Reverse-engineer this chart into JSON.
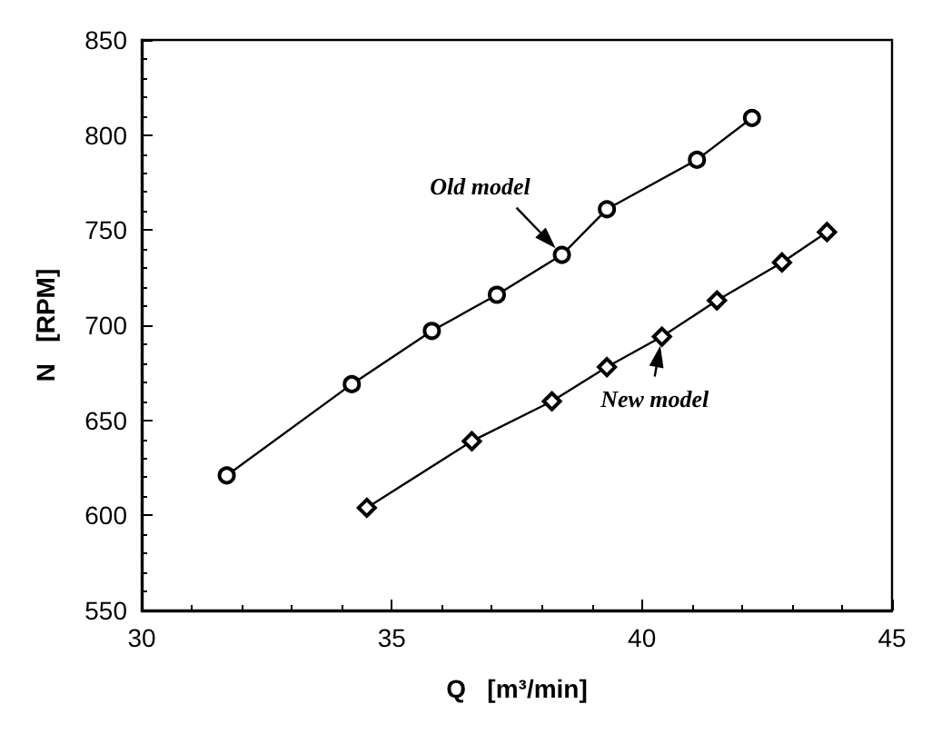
{
  "chart_data": {
    "type": "line",
    "xlabel": "Q   [m³/min]",
    "ylabel": "N   [RPM]",
    "xlim": [
      30,
      45
    ],
    "xticks": [
      30,
      35,
      40,
      45
    ],
    "ylim": [
      550,
      850
    ],
    "yticks": [
      550,
      600,
      650,
      700,
      750,
      800,
      850
    ],
    "grid": false,
    "line_style": "solid",
    "series": [
      {
        "color": "#000000",
        "marker": "circle",
        "x": [
          31.7,
          34.2,
          35.8,
          37.1,
          38.4,
          39.3,
          41.1,
          42.2
        ],
        "values": [
          621,
          669,
          697,
          716,
          737,
          761,
          787,
          809
        ]
      },
      {
        "color": "#000000",
        "marker": "diamond",
        "x": [
          34.5,
          36.6,
          38.2,
          39.3,
          40.4,
          41.5,
          42.8,
          43.7
        ],
        "values": [
          604,
          639,
          660,
          678,
          694,
          713,
          733,
          749
        ]
      }
    ],
    "annotations": [
      {
        "text": "Old model",
        "x": 38.4,
        "y": 737
      },
      {
        "text": "New model",
        "x": 40.4,
        "y": 694
      }
    ]
  }
}
